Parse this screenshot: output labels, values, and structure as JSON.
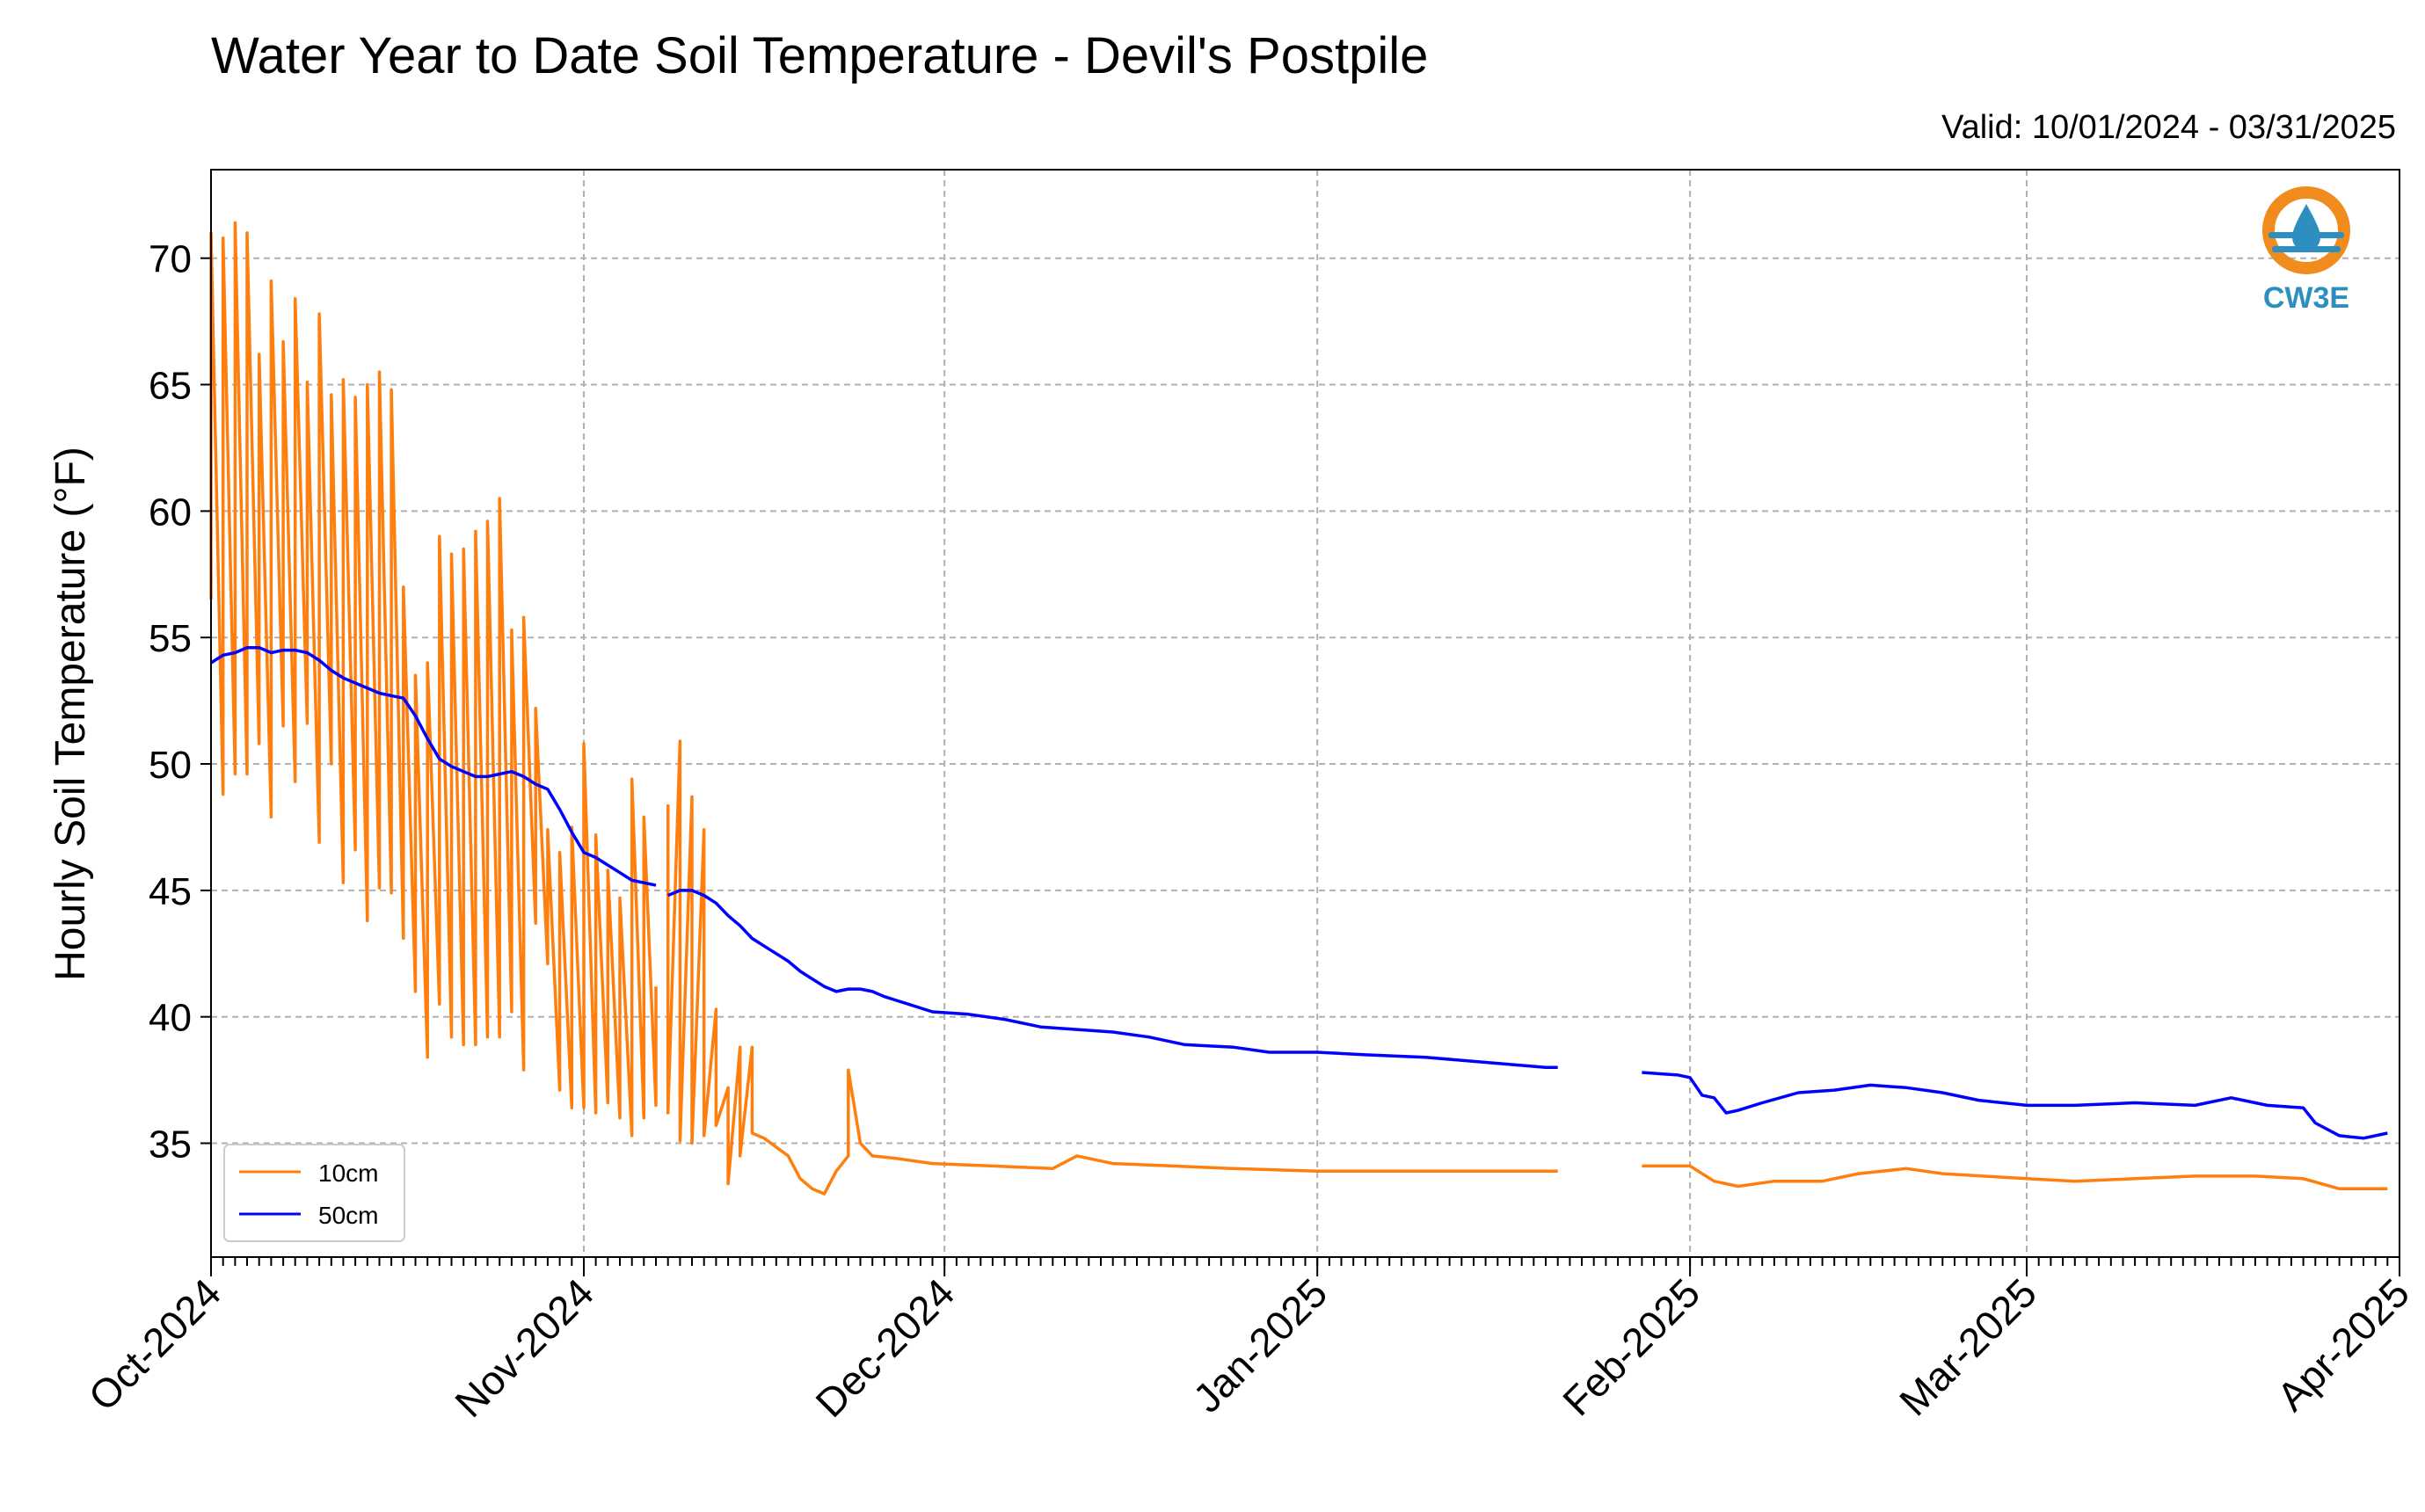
{
  "chart_data": {
    "type": "line",
    "title": "Water Year to Date Soil Temperature - Devil's Postpile",
    "subtitle": "Valid: 10/01/2024 - 03/31/2025",
    "xlabel": "",
    "ylabel": "Hourly Soil Temperature (°F)",
    "x_range": [
      "2024-10-01",
      "2025-04-01"
    ],
    "ylim": [
      30.5,
      73.5
    ],
    "y_ticks": [
      35,
      40,
      45,
      50,
      55,
      60,
      65,
      70
    ],
    "x_ticks": [
      {
        "date": "2024-10-01",
        "label": "Oct-2024"
      },
      {
        "date": "2024-11-01",
        "label": "Nov-2024"
      },
      {
        "date": "2024-12-01",
        "label": "Dec-2024"
      },
      {
        "date": "2025-01-01",
        "label": "Jan-2025"
      },
      {
        "date": "2025-02-01",
        "label": "Feb-2025"
      },
      {
        "date": "2025-03-01",
        "label": "Mar-2025"
      },
      {
        "date": "2025-04-01",
        "label": "Apr-2025"
      }
    ],
    "grid": true,
    "legend_position": "bottom-left",
    "series": [
      {
        "name": "10cm",
        "color": "#ff7f0e",
        "segments": [
          [
            [
              "2024-10-01",
              56.5
            ],
            [
              "2024-10-01",
              71.0
            ],
            [
              "2024-10-02",
              48.8
            ],
            [
              "2024-10-02",
              70.8
            ],
            [
              "2024-10-03",
              49.6
            ],
            [
              "2024-10-03",
              71.4
            ],
            [
              "2024-10-04",
              49.6
            ],
            [
              "2024-10-04",
              71.0
            ],
            [
              "2024-10-05",
              50.8
            ],
            [
              "2024-10-05",
              66.2
            ],
            [
              "2024-10-06",
              47.9
            ],
            [
              "2024-10-06",
              69.1
            ],
            [
              "2024-10-07",
              51.5
            ],
            [
              "2024-10-07",
              66.7
            ],
            [
              "2024-10-08",
              49.3
            ],
            [
              "2024-10-08",
              68.4
            ],
            [
              "2024-10-09",
              51.6
            ],
            [
              "2024-10-09",
              65.1
            ],
            [
              "2024-10-10",
              46.9
            ],
            [
              "2024-10-10",
              67.8
            ],
            [
              "2024-10-11",
              50.0
            ],
            [
              "2024-10-11",
              64.6
            ],
            [
              "2024-10-12",
              45.3
            ],
            [
              "2024-10-12",
              65.2
            ],
            [
              "2024-10-13",
              46.6
            ],
            [
              "2024-10-13",
              64.5
            ],
            [
              "2024-10-14",
              43.8
            ],
            [
              "2024-10-14",
              65.0
            ],
            [
              "2024-10-15",
              45.1
            ],
            [
              "2024-10-15",
              65.5
            ],
            [
              "2024-10-16",
              44.9
            ],
            [
              "2024-10-16",
              64.8
            ],
            [
              "2024-10-17",
              43.1
            ],
            [
              "2024-10-17",
              57.0
            ],
            [
              "2024-10-18",
              41.0
            ],
            [
              "2024-10-18",
              53.5
            ],
            [
              "2024-10-19",
              38.4
            ],
            [
              "2024-10-19",
              54.0
            ],
            [
              "2024-10-20",
              40.5
            ],
            [
              "2024-10-20",
              59.0
            ],
            [
              "2024-10-21",
              39.2
            ],
            [
              "2024-10-21",
              58.3
            ],
            [
              "2024-10-22",
              38.9
            ],
            [
              "2024-10-22",
              58.5
            ],
            [
              "2024-10-23",
              38.9
            ],
            [
              "2024-10-23",
              59.2
            ],
            [
              "2024-10-24",
              39.2
            ],
            [
              "2024-10-24",
              59.6
            ],
            [
              "2024-10-25",
              39.2
            ],
            [
              "2024-10-25",
              60.5
            ],
            [
              "2024-10-26",
              40.2
            ],
            [
              "2024-10-26",
              55.3
            ],
            [
              "2024-10-27",
              37.9
            ],
            [
              "2024-10-27",
              55.8
            ],
            [
              "2024-10-28",
              43.7
            ],
            [
              "2024-10-28",
              52.2
            ],
            [
              "2024-10-29",
              42.1
            ],
            [
              "2024-10-29",
              47.4
            ],
            [
              "2024-10-30",
              37.1
            ],
            [
              "2024-10-30",
              46.5
            ],
            [
              "2024-10-31",
              36.4
            ],
            [
              "2024-10-31",
              47.5
            ],
            [
              "2024-11-01",
              36.4
            ],
            [
              "2024-11-01",
              50.8
            ],
            [
              "2024-11-02",
              36.2
            ],
            [
              "2024-11-02",
              47.2
            ],
            [
              "2024-11-03",
              36.6
            ],
            [
              "2024-11-03",
              45.8
            ],
            [
              "2024-11-04",
              36.0
            ],
            [
              "2024-11-04",
              44.7
            ],
            [
              "2024-11-05",
              35.3
            ],
            [
              "2024-11-05",
              49.4
            ],
            [
              "2024-11-06",
              36.0
            ],
            [
              "2024-11-06",
              47.9
            ],
            [
              "2024-11-07",
              36.5
            ],
            [
              "2024-11-07",
              41.2
            ]
          ],
          [
            [
              "2024-11-08",
              48.4
            ],
            [
              "2024-11-08",
              36.2
            ],
            [
              "2024-11-09",
              50.9
            ],
            [
              "2024-11-09",
              35.1
            ],
            [
              "2024-11-10",
              48.7
            ],
            [
              "2024-11-10",
              35.0
            ],
            [
              "2024-11-11",
              47.4
            ],
            [
              "2024-11-11",
              35.3
            ],
            [
              "2024-11-12",
              40.3
            ],
            [
              "2024-11-12",
              35.7
            ],
            [
              "2024-11-13",
              37.2
            ],
            [
              "2024-11-13",
              33.4
            ],
            [
              "2024-11-14",
              38.8
            ],
            [
              "2024-11-14",
              34.5
            ],
            [
              "2024-11-15",
              38.8
            ],
            [
              "2024-11-15",
              35.4
            ],
            [
              "2024-11-16",
              35.2
            ],
            [
              "2024-11-18",
              34.5
            ],
            [
              "2024-11-19",
              33.6
            ],
            [
              "2024-11-20",
              33.2
            ],
            [
              "2024-11-21",
              33.0
            ],
            [
              "2024-11-22",
              33.9
            ],
            [
              "2024-11-23",
              34.5
            ],
            [
              "2024-11-23",
              37.9
            ],
            [
              "2024-11-24",
              35.0
            ],
            [
              "2024-11-25",
              34.5
            ],
            [
              "2024-11-27",
              34.4
            ],
            [
              "2024-11-30",
              34.2
            ],
            [
              "2024-12-05",
              34.1
            ],
            [
              "2024-12-10",
              34.0
            ],
            [
              "2024-12-12",
              34.5
            ],
            [
              "2024-12-15",
              34.2
            ],
            [
              "2024-12-20",
              34.1
            ],
            [
              "2024-12-25",
              34.0
            ],
            [
              "2025-01-01",
              33.9
            ],
            [
              "2025-01-05",
              33.9
            ],
            [
              "2025-01-10",
              33.9
            ],
            [
              "2025-01-15",
              33.9
            ],
            [
              "2025-01-20",
              33.9
            ],
            [
              "2025-01-21",
              33.9
            ]
          ],
          [
            [
              "2025-01-28",
              34.1
            ],
            [
              "2025-02-01",
              34.1
            ],
            [
              "2025-02-03",
              33.5
            ],
            [
              "2025-02-05",
              33.3
            ],
            [
              "2025-02-08",
              33.5
            ],
            [
              "2025-02-12",
              33.5
            ],
            [
              "2025-02-15",
              33.8
            ],
            [
              "2025-02-19",
              34.0
            ],
            [
              "2025-02-22",
              33.8
            ],
            [
              "2025-03-01",
              33.6
            ],
            [
              "2025-03-05",
              33.5
            ],
            [
              "2025-03-10",
              33.6
            ],
            [
              "2025-03-15",
              33.7
            ],
            [
              "2025-03-20",
              33.7
            ],
            [
              "2025-03-24",
              33.6
            ],
            [
              "2025-03-27",
              33.2
            ],
            [
              "2025-03-31",
              33.2
            ]
          ]
        ]
      },
      {
        "name": "50cm",
        "color": "#0000ff",
        "segments": [
          [
            [
              "2024-10-01",
              54.0
            ],
            [
              "2024-10-02",
              54.3
            ],
            [
              "2024-10-03",
              54.4
            ],
            [
              "2024-10-04",
              54.6
            ],
            [
              "2024-10-05",
              54.6
            ],
            [
              "2024-10-06",
              54.4
            ],
            [
              "2024-10-07",
              54.5
            ],
            [
              "2024-10-08",
              54.5
            ],
            [
              "2024-10-09",
              54.4
            ],
            [
              "2024-10-10",
              54.1
            ],
            [
              "2024-10-11",
              53.7
            ],
            [
              "2024-10-12",
              53.4
            ],
            [
              "2024-10-13",
              53.2
            ],
            [
              "2024-10-14",
              53.0
            ],
            [
              "2024-10-15",
              52.8
            ],
            [
              "2024-10-16",
              52.7
            ],
            [
              "2024-10-17",
              52.6
            ],
            [
              "2024-10-18",
              51.9
            ],
            [
              "2024-10-19",
              51.0
            ],
            [
              "2024-10-20",
              50.2
            ],
            [
              "2024-10-21",
              49.9
            ],
            [
              "2024-10-22",
              49.7
            ],
            [
              "2024-10-23",
              49.5
            ],
            [
              "2024-10-24",
              49.5
            ],
            [
              "2024-10-25",
              49.6
            ],
            [
              "2024-10-26",
              49.7
            ],
            [
              "2024-10-27",
              49.5
            ],
            [
              "2024-10-28",
              49.2
            ],
            [
              "2024-10-29",
              49.0
            ],
            [
              "2024-10-30",
              48.2
            ],
            [
              "2024-10-31",
              47.3
            ],
            [
              "2024-11-01",
              46.5
            ],
            [
              "2024-11-02",
              46.3
            ],
            [
              "2024-11-03",
              46.0
            ],
            [
              "2024-11-04",
              45.7
            ],
            [
              "2024-11-05",
              45.4
            ],
            [
              "2024-11-06",
              45.3
            ],
            [
              "2024-11-07",
              45.2
            ]
          ],
          [
            [
              "2024-11-08",
              44.8
            ],
            [
              "2024-11-09",
              45.0
            ],
            [
              "2024-11-10",
              45.0
            ],
            [
              "2024-11-11",
              44.8
            ],
            [
              "2024-11-12",
              44.5
            ],
            [
              "2024-11-13",
              44.0
            ],
            [
              "2024-11-14",
              43.6
            ],
            [
              "2024-11-15",
              43.1
            ],
            [
              "2024-11-16",
              42.8
            ],
            [
              "2024-11-17",
              42.5
            ],
            [
              "2024-11-18",
              42.2
            ],
            [
              "2024-11-19",
              41.8
            ],
            [
              "2024-11-20",
              41.5
            ],
            [
              "2024-11-21",
              41.2
            ],
            [
              "2024-11-22",
              41.0
            ],
            [
              "2024-11-23",
              41.1
            ],
            [
              "2024-11-24",
              41.1
            ],
            [
              "2024-11-25",
              41.0
            ],
            [
              "2024-11-26",
              40.8
            ],
            [
              "2024-11-28",
              40.5
            ],
            [
              "2024-11-30",
              40.2
            ],
            [
              "2024-12-03",
              40.1
            ],
            [
              "2024-12-06",
              39.9
            ],
            [
              "2024-12-09",
              39.6
            ],
            [
              "2024-12-12",
              39.5
            ],
            [
              "2024-12-15",
              39.4
            ],
            [
              "2024-12-18",
              39.2
            ],
            [
              "2024-12-21",
              38.9
            ],
            [
              "2024-12-25",
              38.8
            ],
            [
              "2024-12-28",
              38.6
            ],
            [
              "2025-01-01",
              38.6
            ],
            [
              "2025-01-05",
              38.5
            ],
            [
              "2025-01-10",
              38.4
            ],
            [
              "2025-01-15",
              38.2
            ],
            [
              "2025-01-20",
              38.0
            ],
            [
              "2025-01-21",
              38.0
            ]
          ],
          [
            [
              "2025-01-28",
              37.8
            ],
            [
              "2025-01-31",
              37.7
            ],
            [
              "2025-02-01",
              37.6
            ],
            [
              "2025-02-02",
              36.9
            ],
            [
              "2025-02-03",
              36.8
            ],
            [
              "2025-02-04",
              36.2
            ],
            [
              "2025-02-05",
              36.3
            ],
            [
              "2025-02-07",
              36.6
            ],
            [
              "2025-02-10",
              37.0
            ],
            [
              "2025-02-13",
              37.1
            ],
            [
              "2025-02-16",
              37.3
            ],
            [
              "2025-02-19",
              37.2
            ],
            [
              "2025-02-22",
              37.0
            ],
            [
              "2025-02-25",
              36.7
            ],
            [
              "2025-03-01",
              36.5
            ],
            [
              "2025-03-05",
              36.5
            ],
            [
              "2025-03-10",
              36.6
            ],
            [
              "2025-03-15",
              36.5
            ],
            [
              "2025-03-18",
              36.8
            ],
            [
              "2025-03-21",
              36.5
            ],
            [
              "2025-03-24",
              36.4
            ],
            [
              "2025-03-25",
              35.8
            ],
            [
              "2025-03-27",
              35.3
            ],
            [
              "2025-03-29",
              35.2
            ],
            [
              "2025-03-31",
              35.4
            ]
          ]
        ]
      }
    ]
  },
  "logo": {
    "text": "CW3E",
    "colors": {
      "ring": "#f08c1e",
      "drop": "#2d8fbf",
      "text": "#2d8fbf"
    }
  }
}
